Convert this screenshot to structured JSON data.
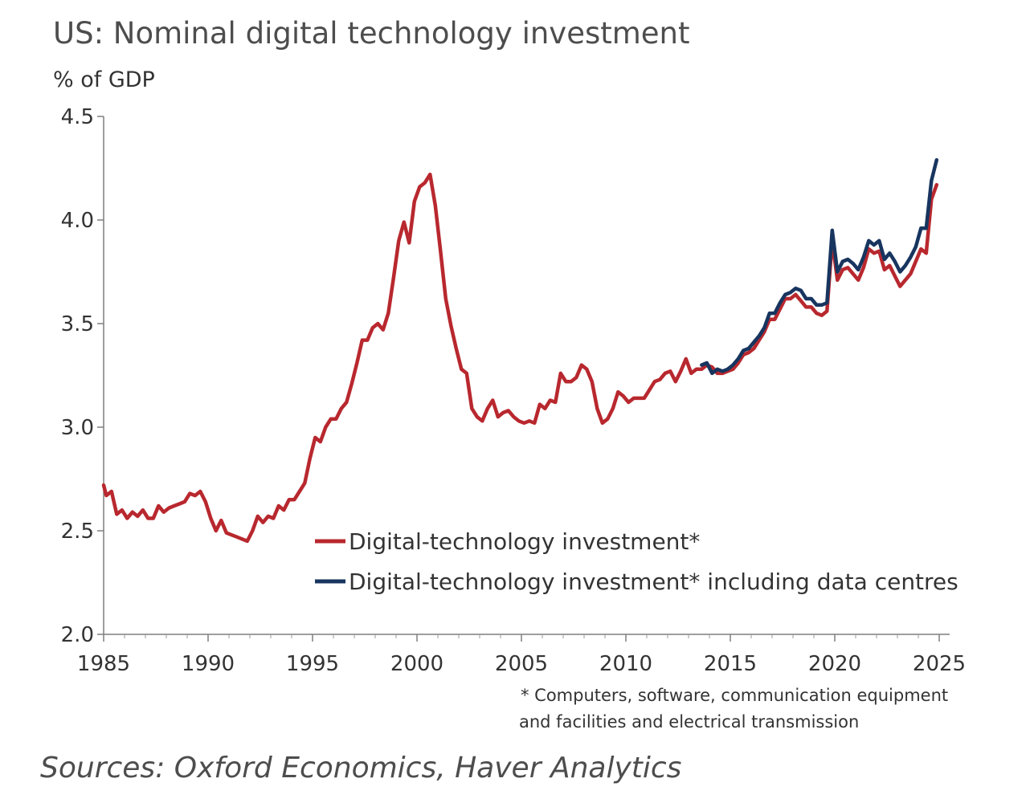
{
  "chart_data": {
    "type": "line",
    "title": "US: Nominal digital technology investment",
    "ylabel": "% of GDP",
    "xlabel": "",
    "xlim": [
      1985,
      2025.5
    ],
    "ylim": [
      2.0,
      4.5
    ],
    "x_ticks": [
      1985,
      1990,
      1995,
      2000,
      2005,
      2010,
      2015,
      2020,
      2025
    ],
    "x_tick_labels": [
      "1985",
      "1990",
      "1995",
      "2000",
      "2005",
      "2010",
      "2015",
      "2020",
      "2025"
    ],
    "y_ticks": [
      2.0,
      2.5,
      3.0,
      3.5,
      4.0,
      4.5
    ],
    "y_tick_labels": [
      "2.0",
      "2.5",
      "3.0",
      "3.5",
      "4.0",
      "4.5"
    ],
    "grid": false,
    "legend_position": "lower-center",
    "series": [
      {
        "name": "Digital-technology investment*",
        "color": "#b8282e",
        "points": [
          [
            1985.0,
            2.72
          ],
          [
            1985.125,
            2.67
          ],
          [
            1985.375,
            2.69
          ],
          [
            1985.625,
            2.58
          ],
          [
            1985.875,
            2.6
          ],
          [
            1986.125,
            2.56
          ],
          [
            1986.375,
            2.59
          ],
          [
            1986.625,
            2.57
          ],
          [
            1986.875,
            2.6
          ],
          [
            1987.125,
            2.56
          ],
          [
            1987.375,
            2.56
          ],
          [
            1987.625,
            2.62
          ],
          [
            1987.875,
            2.59
          ],
          [
            1988.125,
            2.61
          ],
          [
            1988.375,
            2.62
          ],
          [
            1988.625,
            2.63
          ],
          [
            1988.875,
            2.64
          ],
          [
            1989.125,
            2.68
          ],
          [
            1989.375,
            2.67
          ],
          [
            1989.625,
            2.69
          ],
          [
            1989.875,
            2.64
          ],
          [
            1990.125,
            2.56
          ],
          [
            1990.375,
            2.5
          ],
          [
            1990.625,
            2.55
          ],
          [
            1990.875,
            2.49
          ],
          [
            1991.125,
            2.48
          ],
          [
            1991.375,
            2.47
          ],
          [
            1991.625,
            2.46
          ],
          [
            1991.875,
            2.45
          ],
          [
            1992.125,
            2.5
          ],
          [
            1992.375,
            2.57
          ],
          [
            1992.625,
            2.54
          ],
          [
            1992.875,
            2.57
          ],
          [
            1993.125,
            2.56
          ],
          [
            1993.375,
            2.62
          ],
          [
            1993.625,
            2.6
          ],
          [
            1993.875,
            2.65
          ],
          [
            1994.125,
            2.65
          ],
          [
            1994.375,
            2.69
          ],
          [
            1994.625,
            2.73
          ],
          [
            1994.875,
            2.85
          ],
          [
            1995.125,
            2.95
          ],
          [
            1995.375,
            2.93
          ],
          [
            1995.625,
            3.0
          ],
          [
            1995.875,
            3.04
          ],
          [
            1996.125,
            3.04
          ],
          [
            1996.375,
            3.09
          ],
          [
            1996.625,
            3.12
          ],
          [
            1996.875,
            3.21
          ],
          [
            1997.125,
            3.31
          ],
          [
            1997.375,
            3.42
          ],
          [
            1997.625,
            3.42
          ],
          [
            1997.875,
            3.48
          ],
          [
            1998.125,
            3.5
          ],
          [
            1998.375,
            3.47
          ],
          [
            1998.625,
            3.55
          ],
          [
            1998.875,
            3.72
          ],
          [
            1999.125,
            3.9
          ],
          [
            1999.375,
            3.99
          ],
          [
            1999.625,
            3.89
          ],
          [
            1999.875,
            4.09
          ],
          [
            2000.125,
            4.16
          ],
          [
            2000.375,
            4.18
          ],
          [
            2000.625,
            4.22
          ],
          [
            2000.875,
            4.07
          ],
          [
            2001.125,
            3.85
          ],
          [
            2001.375,
            3.62
          ],
          [
            2001.625,
            3.49
          ],
          [
            2001.875,
            3.38
          ],
          [
            2002.125,
            3.28
          ],
          [
            2002.375,
            3.26
          ],
          [
            2002.625,
            3.09
          ],
          [
            2002.875,
            3.05
          ],
          [
            2003.125,
            3.03
          ],
          [
            2003.375,
            3.09
          ],
          [
            2003.625,
            3.13
          ],
          [
            2003.875,
            3.05
          ],
          [
            2004.125,
            3.07
          ],
          [
            2004.375,
            3.08
          ],
          [
            2004.625,
            3.05
          ],
          [
            2004.875,
            3.03
          ],
          [
            2005.125,
            3.02
          ],
          [
            2005.375,
            3.03
          ],
          [
            2005.625,
            3.02
          ],
          [
            2005.875,
            3.11
          ],
          [
            2006.125,
            3.09
          ],
          [
            2006.375,
            3.13
          ],
          [
            2006.625,
            3.12
          ],
          [
            2006.875,
            3.26
          ],
          [
            2007.125,
            3.22
          ],
          [
            2007.375,
            3.22
          ],
          [
            2007.625,
            3.24
          ],
          [
            2007.875,
            3.3
          ],
          [
            2008.125,
            3.28
          ],
          [
            2008.375,
            3.22
          ],
          [
            2008.625,
            3.09
          ],
          [
            2008.875,
            3.02
          ],
          [
            2009.125,
            3.04
          ],
          [
            2009.375,
            3.09
          ],
          [
            2009.625,
            3.17
          ],
          [
            2009.875,
            3.15
          ],
          [
            2010.125,
            3.12
          ],
          [
            2010.375,
            3.14
          ],
          [
            2010.625,
            3.14
          ],
          [
            2010.875,
            3.14
          ],
          [
            2011.125,
            3.18
          ],
          [
            2011.375,
            3.22
          ],
          [
            2011.625,
            3.23
          ],
          [
            2011.875,
            3.26
          ],
          [
            2012.125,
            3.27
          ],
          [
            2012.375,
            3.22
          ],
          [
            2012.625,
            3.27
          ],
          [
            2012.875,
            3.33
          ],
          [
            2013.125,
            3.26
          ],
          [
            2013.375,
            3.28
          ],
          [
            2013.625,
            3.28
          ],
          [
            2013.875,
            3.3
          ],
          [
            2014.125,
            3.29
          ],
          [
            2014.375,
            3.26
          ],
          [
            2014.625,
            3.26
          ],
          [
            2014.875,
            3.27
          ],
          [
            2015.125,
            3.28
          ],
          [
            2015.375,
            3.31
          ],
          [
            2015.625,
            3.35
          ],
          [
            2015.875,
            3.36
          ],
          [
            2016.125,
            3.38
          ],
          [
            2016.375,
            3.42
          ],
          [
            2016.625,
            3.46
          ],
          [
            2016.875,
            3.52
          ],
          [
            2017.125,
            3.52
          ],
          [
            2017.375,
            3.57
          ],
          [
            2017.625,
            3.62
          ],
          [
            2017.875,
            3.62
          ],
          [
            2018.125,
            3.64
          ],
          [
            2018.375,
            3.61
          ],
          [
            2018.625,
            3.58
          ],
          [
            2018.875,
            3.58
          ],
          [
            2019.125,
            3.55
          ],
          [
            2019.375,
            3.54
          ],
          [
            2019.625,
            3.56
          ],
          [
            2019.875,
            3.9
          ],
          [
            2020.125,
            3.71
          ],
          [
            2020.375,
            3.76
          ],
          [
            2020.625,
            3.77
          ],
          [
            2020.875,
            3.74
          ],
          [
            2021.125,
            3.71
          ],
          [
            2021.375,
            3.77
          ],
          [
            2021.625,
            3.86
          ],
          [
            2021.875,
            3.84
          ],
          [
            2022.125,
            3.85
          ],
          [
            2022.375,
            3.76
          ],
          [
            2022.625,
            3.78
          ],
          [
            2022.875,
            3.73
          ],
          [
            2023.125,
            3.68
          ],
          [
            2023.375,
            3.71
          ],
          [
            2023.625,
            3.74
          ],
          [
            2023.875,
            3.8
          ],
          [
            2024.125,
            3.86
          ],
          [
            2024.375,
            3.84
          ],
          [
            2024.625,
            4.1
          ],
          [
            2024.875,
            4.17
          ]
        ]
      },
      {
        "name": "Digital-technology investment* including data centres",
        "color": "#17355f",
        "points": [
          [
            2013.625,
            3.3
          ],
          [
            2013.875,
            3.31
          ],
          [
            2014.125,
            3.26
          ],
          [
            2014.375,
            3.28
          ],
          [
            2014.625,
            3.27
          ],
          [
            2014.875,
            3.28
          ],
          [
            2015.125,
            3.3
          ],
          [
            2015.375,
            3.33
          ],
          [
            2015.625,
            3.37
          ],
          [
            2015.875,
            3.38
          ],
          [
            2016.125,
            3.41
          ],
          [
            2016.375,
            3.44
          ],
          [
            2016.625,
            3.48
          ],
          [
            2016.875,
            3.55
          ],
          [
            2017.125,
            3.55
          ],
          [
            2017.375,
            3.6
          ],
          [
            2017.625,
            3.64
          ],
          [
            2017.875,
            3.65
          ],
          [
            2018.125,
            3.67
          ],
          [
            2018.375,
            3.66
          ],
          [
            2018.625,
            3.62
          ],
          [
            2018.875,
            3.62
          ],
          [
            2019.125,
            3.59
          ],
          [
            2019.375,
            3.59
          ],
          [
            2019.625,
            3.6
          ],
          [
            2019.875,
            3.95
          ],
          [
            2020.125,
            3.75
          ],
          [
            2020.375,
            3.8
          ],
          [
            2020.625,
            3.81
          ],
          [
            2020.875,
            3.79
          ],
          [
            2021.125,
            3.76
          ],
          [
            2021.375,
            3.82
          ],
          [
            2021.625,
            3.9
          ],
          [
            2021.875,
            3.88
          ],
          [
            2022.125,
            3.9
          ],
          [
            2022.375,
            3.81
          ],
          [
            2022.625,
            3.84
          ],
          [
            2022.875,
            3.8
          ],
          [
            2023.125,
            3.75
          ],
          [
            2023.375,
            3.78
          ],
          [
            2023.625,
            3.82
          ],
          [
            2023.875,
            3.87
          ],
          [
            2024.125,
            3.96
          ],
          [
            2024.375,
            3.96
          ],
          [
            2024.625,
            4.19
          ],
          [
            2024.875,
            4.29
          ]
        ]
      }
    ],
    "footnote_lines": [
      "* Computers, software, communication equipment",
      "and facilities  and electrical transmission"
    ],
    "source": "Sources: Oxford Economics, Haver Analytics"
  }
}
